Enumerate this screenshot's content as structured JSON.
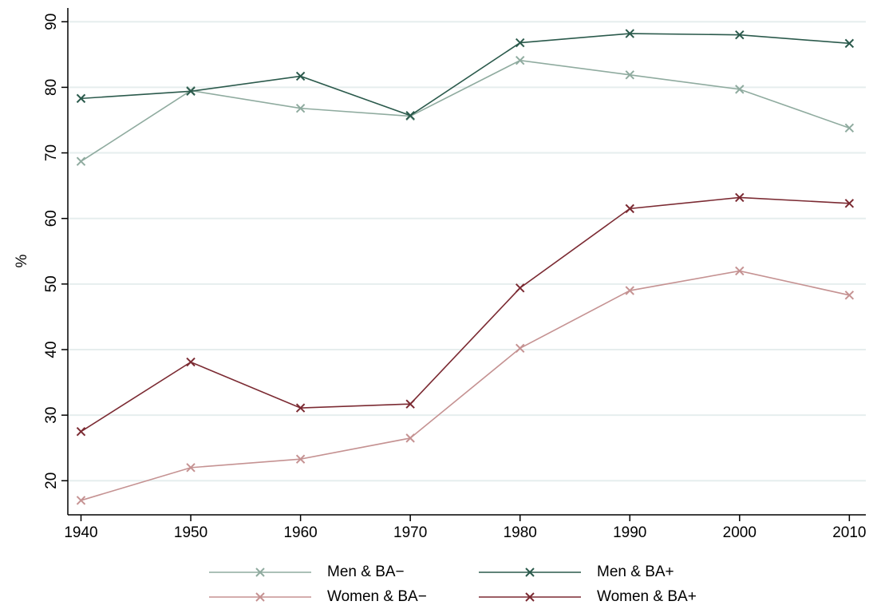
{
  "chart_data": {
    "type": "line",
    "y_label": "%",
    "x": [
      1940,
      1950,
      1960,
      1970,
      1980,
      1990,
      2000,
      2010
    ],
    "series": [
      {
        "name": "Men & BA−",
        "color": "#8fab9f",
        "values": [
          68.7,
          79.5,
          76.8,
          75.6,
          84.1,
          81.9,
          79.7,
          73.8
        ]
      },
      {
        "name": "Men & BA+",
        "color": "#2b5a4c",
        "values": [
          78.3,
          79.4,
          81.7,
          75.7,
          86.8,
          88.2,
          88.0,
          86.7
        ]
      },
      {
        "name": "Women & BA−",
        "color": "#c59292",
        "values": [
          17.0,
          22.0,
          23.3,
          26.5,
          40.2,
          49.0,
          52.0,
          48.3
        ]
      },
      {
        "name": "Women & BA+",
        "color": "#7b2a32",
        "values": [
          27.5,
          38.1,
          31.1,
          31.7,
          49.4,
          61.5,
          63.2,
          62.3
        ]
      }
    ],
    "xlim": [
      1938.8,
      2011.5
    ],
    "ylim": [
      14.8,
      92.1
    ],
    "xticks": [
      1940,
      1950,
      1960,
      1970,
      1980,
      1990,
      2000,
      2010
    ],
    "yticks": [
      20,
      30,
      40,
      50,
      60,
      70,
      80,
      90
    ],
    "grid": true,
    "legend": "bottom"
  }
}
